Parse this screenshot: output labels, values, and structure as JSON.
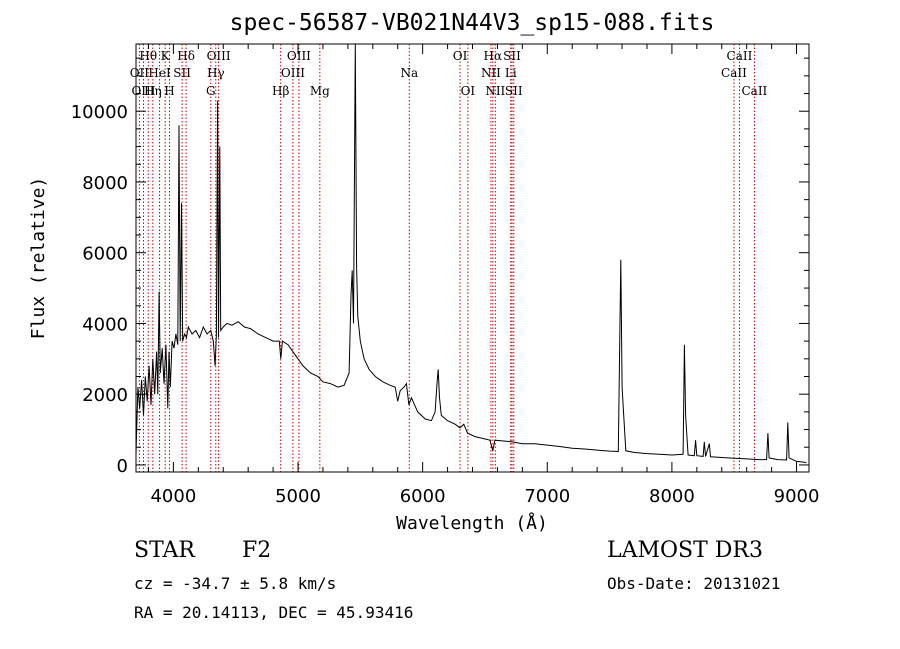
{
  "chart_data": {
    "type": "line",
    "title": "spec-56587-VB021N44V3_sp15-088.fits",
    "xlabel": "Wavelength (Å)",
    "ylabel": "Flux (relative)",
    "xlim": [
      3700,
      9100
    ],
    "ylim": [
      -200,
      11900
    ],
    "xticks": [
      4000,
      5000,
      6000,
      7000,
      8000,
      9000
    ],
    "xtick_labels": [
      "4000",
      "5000",
      "6000",
      "7000",
      "8000",
      "9000"
    ],
    "yticks": [
      0,
      2000,
      4000,
      6000,
      8000,
      10000
    ],
    "ytick_labels": [
      "0",
      "2000",
      "4000",
      "6000",
      "8000",
      "10000"
    ],
    "series": [
      {
        "name": "flux",
        "points": [
          [
            3700,
            300
          ],
          [
            3715,
            2200
          ],
          [
            3730,
            1600
          ],
          [
            3745,
            2400
          ],
          [
            3760,
            1400
          ],
          [
            3775,
            2500
          ],
          [
            3790,
            1800
          ],
          [
            3805,
            2800
          ],
          [
            3820,
            1700
          ],
          [
            3835,
            3000
          ],
          [
            3850,
            2000
          ],
          [
            3865,
            3200
          ],
          [
            3875,
            2000
          ],
          [
            3885,
            4900
          ],
          [
            3895,
            2600
          ],
          [
            3910,
            3300
          ],
          [
            3925,
            2300
          ],
          [
            3940,
            3400
          ],
          [
            3955,
            1600
          ],
          [
            3965,
            3200
          ],
          [
            3975,
            2200
          ],
          [
            3990,
            3500
          ],
          [
            4005,
            3300
          ],
          [
            4020,
            3700
          ],
          [
            4035,
            3400
          ],
          [
            4045,
            9600
          ],
          [
            4055,
            3500
          ],
          [
            4065,
            7400
          ],
          [
            4075,
            3500
          ],
          [
            4090,
            3700
          ],
          [
            4105,
            3600
          ],
          [
            4120,
            3900
          ],
          [
            4150,
            3700
          ],
          [
            4180,
            3800
          ],
          [
            4210,
            3600
          ],
          [
            4240,
            3900
          ],
          [
            4270,
            3700
          ],
          [
            4300,
            3800
          ],
          [
            4320,
            3500
          ],
          [
            4335,
            2800
          ],
          [
            4345,
            3700
          ],
          [
            4355,
            10300
          ],
          [
            4362,
            3600
          ],
          [
            4372,
            9000
          ],
          [
            4380,
            3800
          ],
          [
            4400,
            3900
          ],
          [
            4430,
            4000
          ],
          [
            4470,
            3950
          ],
          [
            4520,
            4050
          ],
          [
            4570,
            3900
          ],
          [
            4620,
            3850
          ],
          [
            4680,
            3700
          ],
          [
            4740,
            3600
          ],
          [
            4800,
            3500
          ],
          [
            4850,
            3500
          ],
          [
            4862,
            3000
          ],
          [
            4875,
            3500
          ],
          [
            4920,
            3400
          ],
          [
            4980,
            3100
          ],
          [
            5040,
            2800
          ],
          [
            5100,
            2600
          ],
          [
            5160,
            2500
          ],
          [
            5200,
            2350
          ],
          [
            5260,
            2300
          ],
          [
            5320,
            2200
          ],
          [
            5370,
            2250
          ],
          [
            5410,
            2600
          ],
          [
            5425,
            4800
          ],
          [
            5435,
            5500
          ],
          [
            5445,
            4000
          ],
          [
            5460,
            11900
          ],
          [
            5470,
            5600
          ],
          [
            5480,
            4200
          ],
          [
            5500,
            3500
          ],
          [
            5530,
            3000
          ],
          [
            5570,
            2700
          ],
          [
            5620,
            2500
          ],
          [
            5680,
            2350
          ],
          [
            5740,
            2250
          ],
          [
            5780,
            2200
          ],
          [
            5800,
            1800
          ],
          [
            5820,
            2100
          ],
          [
            5850,
            2200
          ],
          [
            5870,
            2300
          ],
          [
            5890,
            1700
          ],
          [
            5910,
            1900
          ],
          [
            5960,
            1500
          ],
          [
            6020,
            1300
          ],
          [
            6070,
            1250
          ],
          [
            6100,
            1500
          ],
          [
            6115,
            2300
          ],
          [
            6125,
            2700
          ],
          [
            6135,
            1900
          ],
          [
            6150,
            1400
          ],
          [
            6200,
            1250
          ],
          [
            6260,
            1150
          ],
          [
            6300,
            1050
          ],
          [
            6330,
            1150
          ],
          [
            6360,
            900
          ],
          [
            6420,
            800
          ],
          [
            6480,
            750
          ],
          [
            6540,
            700
          ],
          [
            6563,
            400
          ],
          [
            6580,
            700
          ],
          [
            6640,
            680
          ],
          [
            6720,
            650
          ],
          [
            6800,
            600
          ],
          [
            6900,
            600
          ],
          [
            7000,
            560
          ],
          [
            7100,
            520
          ],
          [
            7200,
            470
          ],
          [
            7300,
            450
          ],
          [
            7400,
            420
          ],
          [
            7500,
            390
          ],
          [
            7570,
            380
          ],
          [
            7590,
            5800
          ],
          [
            7600,
            2200
          ],
          [
            7610,
            1600
          ],
          [
            7630,
            400
          ],
          [
            7700,
            350
          ],
          [
            7800,
            320
          ],
          [
            7900,
            300
          ],
          [
            8000,
            280
          ],
          [
            8090,
            300
          ],
          [
            8100,
            3400
          ],
          [
            8110,
            1400
          ],
          [
            8130,
            280
          ],
          [
            8180,
            260
          ],
          [
            8190,
            700
          ],
          [
            8200,
            260
          ],
          [
            8250,
            240
          ],
          [
            8260,
            650
          ],
          [
            8270,
            240
          ],
          [
            8300,
            600
          ],
          [
            8310,
            230
          ],
          [
            8400,
            210
          ],
          [
            8500,
            190
          ],
          [
            8600,
            170
          ],
          [
            8700,
            150
          ],
          [
            8760,
            150
          ],
          [
            8770,
            900
          ],
          [
            8780,
            200
          ],
          [
            8850,
            150
          ],
          [
            8920,
            140
          ],
          [
            8930,
            1200
          ],
          [
            8940,
            200
          ],
          [
            9000,
            100
          ],
          [
            9060,
            80
          ],
          [
            9080,
            60
          ]
        ]
      }
    ],
    "line_labels": [
      {
        "name": "Hθ",
        "x": 3798,
        "row": 1
      },
      {
        "name": "OII",
        "x": 3727,
        "row": 2
      },
      {
        "name": "OIII",
        "x": 3760,
        "row": 3
      },
      {
        "name": "Hη",
        "x": 3835,
        "row": 3
      },
      {
        "name": "HeI",
        "x": 3889,
        "row": 2
      },
      {
        "name": "K",
        "x": 3934,
        "row": 1
      },
      {
        "name": "H",
        "x": 3969,
        "row": 3
      },
      {
        "name": "SII",
        "x": 4070,
        "row": 2
      },
      {
        "name": "Hδ",
        "x": 4102,
        "row": 1
      },
      {
        "name": "OIII",
        "x": 4363,
        "row": 1
      },
      {
        "name": "Hγ",
        "x": 4340,
        "row": 2
      },
      {
        "name": "G",
        "x": 4300,
        "row": 3
      },
      {
        "name": "Hβ",
        "x": 4861,
        "row": 3
      },
      {
        "name": "OIII",
        "x": 4959,
        "row": 2
      },
      {
        "name": "OIII",
        "x": 5007,
        "row": 1
      },
      {
        "name": "Mg",
        "x": 5175,
        "row": 3
      },
      {
        "name": "Na",
        "x": 5893,
        "row": 2
      },
      {
        "name": "OI",
        "x": 6300,
        "row": 1
      },
      {
        "name": "OI",
        "x": 6363,
        "row": 3
      },
      {
        "name": "Hα",
        "x": 6563,
        "row": 1
      },
      {
        "name": "NII",
        "x": 6548,
        "row": 2
      },
      {
        "name": "NII",
        "x": 6583,
        "row": 3
      },
      {
        "name": "SII",
        "x": 6717,
        "row": 1
      },
      {
        "name": "Li",
        "x": 6707,
        "row": 2
      },
      {
        "name": "SII",
        "x": 6731,
        "row": 3
      },
      {
        "name": "CaII",
        "x": 8498,
        "row": 2
      },
      {
        "name": "CaII",
        "x": 8542,
        "row": 1
      },
      {
        "name": "CaII",
        "x": 8662,
        "row": 3
      }
    ],
    "line_color": "#000000",
    "marker_color": "#cc0000"
  },
  "info": {
    "object_class": "STAR",
    "subclass": "F2",
    "survey": "LAMOST DR3",
    "redshift": "cz = -34.7 ± 5.8 km/s",
    "obs_date": "Obs-Date: 20131021",
    "coords": "RA =  20.14113, DEC =  45.93416"
  }
}
